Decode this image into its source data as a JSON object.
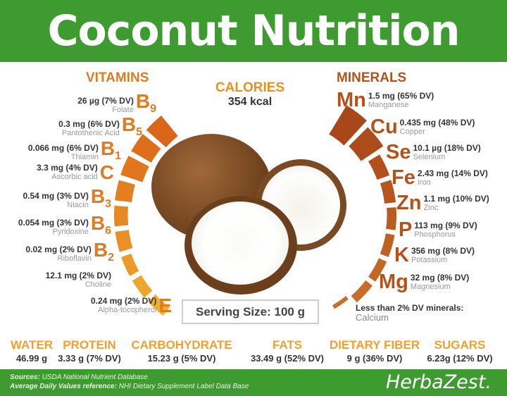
{
  "title": "Coconut Nutrition",
  "colors": {
    "green": "#3d9b2f",
    "vitamin_orange": "#e07b20",
    "mineral_brown": "#b5521c",
    "macro_orange": "#f0a030"
  },
  "calories": {
    "label": "CALORIES",
    "value": "354 kcal"
  },
  "vitamins": {
    "title": "VITAMINS",
    "items": [
      {
        "symbol": "B",
        "subscript": "9",
        "value": "26 µg (7% DV)",
        "name": "Folate",
        "dv": 7
      },
      {
        "symbol": "B",
        "subscript": "5",
        "value": "0.3 mg (6% DV)",
        "name": "Pantothenic Acid",
        "dv": 6
      },
      {
        "symbol": "B",
        "subscript": "1",
        "value": "0.066 mg (6% DV)",
        "name": "Thiamin",
        "dv": 6
      },
      {
        "symbol": "C",
        "subscript": "",
        "value": "3.3 mg (4% DV)",
        "name": "Ascorbic acid",
        "dv": 4
      },
      {
        "symbol": "B",
        "subscript": "3",
        "value": "0.54 mg (3% DV)",
        "name": "Niacin",
        "dv": 3
      },
      {
        "symbol": "B",
        "subscript": "6",
        "value": "0.054 mg (3% DV)",
        "name": "Pyridoxine",
        "dv": 3
      },
      {
        "symbol": "B",
        "subscript": "2",
        "value": "0.02 mg (2% DV)",
        "name": "Riboflavin",
        "dv": 2
      },
      {
        "symbol": "",
        "subscript": "",
        "value": "12.1 mg (2% DV)",
        "name": "Choline",
        "dv": 2
      },
      {
        "symbol": "E",
        "subscript": "",
        "value": "0.24 mg (2% DV)",
        "name": "Alpha-tocopherol",
        "dv": 2
      }
    ]
  },
  "minerals": {
    "title": "MINERALS",
    "items": [
      {
        "symbol": "Mn",
        "value": "1.5 mg (65% DV)",
        "name": "Manganese",
        "dv": 65
      },
      {
        "symbol": "Cu",
        "value": "0.435 mg (48% DV)",
        "name": "Copper",
        "dv": 48
      },
      {
        "symbol": "Se",
        "value": "10.1 µg (18% DV)",
        "name": "Selenium",
        "dv": 18
      },
      {
        "symbol": "Fe",
        "value": "2.43 mg (14% DV)",
        "name": "Iron",
        "dv": 14
      },
      {
        "symbol": "Zn",
        "value": "1.1 mg (10% DV)",
        "name": "Zinc",
        "dv": 10
      },
      {
        "symbol": "P",
        "value": "113 mg (9% DV)",
        "name": "Phosphorus",
        "dv": 9
      },
      {
        "symbol": "K",
        "value": "356 mg (8% DV)",
        "name": "Potassium",
        "dv": 8
      },
      {
        "symbol": "Mg",
        "value": "32 mg (8% DV)",
        "name": "Magnesium",
        "dv": 8
      }
    ],
    "less_than_label": "Less than 2% DV minerals:",
    "less_than_value": "Calcium"
  },
  "serving_size": "Serving Size: 100 g",
  "macros": [
    {
      "label": "WATER",
      "value": "46.99 g"
    },
    {
      "label": "PROTEIN",
      "value": "3.33 g (7% DV)"
    },
    {
      "label": "CARBOHYDRATE",
      "value": "15.23 g (5% DV)"
    },
    {
      "label": "FATS",
      "value": "33.49 g (52% DV)"
    },
    {
      "label": "DIETARY FIBER",
      "value": "9 g (36% DV)"
    },
    {
      "label": "SUGARS",
      "value": "6.23g (12% DV)"
    }
  ],
  "footer": {
    "sources_label": "Sources:",
    "sources_value": "USDA National Nutrient Database",
    "dv_label": "Average Daily Values reference:",
    "dv_value": "NHI Dietary Supplement Label Data Base",
    "brand": "HerbaZest."
  }
}
